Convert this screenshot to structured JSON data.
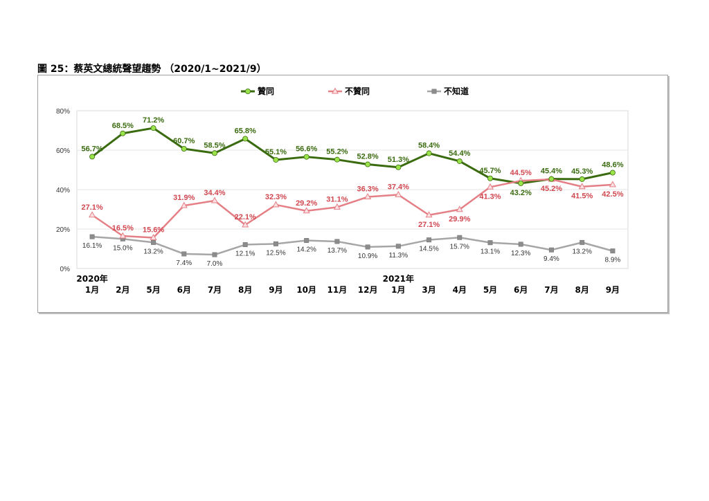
{
  "page": {
    "title": "圖 25：蔡英文總統聲望趨勢 （2020/1~2021/9）"
  },
  "chart_data": {
    "type": "line",
    "title": "",
    "xlabel": "",
    "ylabel": "",
    "ylim": [
      0,
      80
    ],
    "yticks": [
      "0%",
      "20%",
      "40%",
      "60%",
      "80%"
    ],
    "grid": true,
    "legend_position": "top-center",
    "categories": [
      {
        "year": "2020年",
        "month": "1月"
      },
      {
        "year": "",
        "month": "2月"
      },
      {
        "year": "",
        "month": "5月"
      },
      {
        "year": "",
        "month": "6月"
      },
      {
        "year": "",
        "month": "7月"
      },
      {
        "year": "",
        "month": "8月"
      },
      {
        "year": "",
        "month": "9月"
      },
      {
        "year": "",
        "month": "10月"
      },
      {
        "year": "",
        "month": "11月"
      },
      {
        "year": "",
        "month": "12月"
      },
      {
        "year": "2021年",
        "month": "1月"
      },
      {
        "year": "",
        "month": "3月"
      },
      {
        "year": "",
        "month": "4月"
      },
      {
        "year": "",
        "month": "5月"
      },
      {
        "year": "",
        "month": "6月"
      },
      {
        "year": "",
        "month": "7月"
      },
      {
        "year": "",
        "month": "8月"
      },
      {
        "year": "",
        "month": "9月"
      }
    ],
    "series": [
      {
        "name": "贊同",
        "color": "#3a6b0f",
        "marker": "circle",
        "marker_color": "#9be34a",
        "values": [
          56.7,
          68.5,
          71.2,
          60.7,
          58.5,
          65.8,
          55.1,
          56.6,
          55.2,
          52.8,
          51.3,
          58.4,
          54.4,
          45.7,
          43.2,
          45.4,
          45.3,
          48.6
        ],
        "labels": [
          "56.7%",
          "68.5%",
          "71.2%",
          "60.7%",
          "58.5%",
          "65.8%",
          "55.1%",
          "56.6%",
          "55.2%",
          "52.8%",
          "51.3%",
          "58.4%",
          "54.4%",
          "45.7%",
          "43.2%",
          "45.4%",
          "45.3%",
          "48.6%"
        ],
        "label_position": [
          "above",
          "above",
          "above",
          "above",
          "above",
          "above",
          "above",
          "above",
          "above",
          "above",
          "above",
          "above",
          "above",
          "above",
          "below",
          "above",
          "above",
          "above"
        ]
      },
      {
        "name": "不贊同",
        "color": "#e57f86",
        "marker": "triangle",
        "marker_color": "#fbe1e3",
        "values": [
          27.1,
          16.5,
          15.6,
          31.9,
          34.4,
          22.1,
          32.3,
          29.2,
          31.1,
          36.3,
          37.4,
          27.1,
          29.9,
          41.3,
          44.5,
          45.2,
          41.5,
          42.5
        ],
        "labels": [
          "27.1%",
          "16.5%",
          "15.6%",
          "31.9%",
          "34.4%",
          "22.1%",
          "32.3%",
          "29.2%",
          "31.1%",
          "36.3%",
          "37.4%",
          "27.1%",
          "29.9%",
          "41.3%",
          "44.5%",
          "45.2%",
          "41.5%",
          "42.5%"
        ],
        "label_position": [
          "above",
          "above",
          "above",
          "above",
          "above",
          "above",
          "above",
          "above",
          "above",
          "above",
          "above",
          "below",
          "below",
          "below",
          "above",
          "below",
          "below",
          "below"
        ]
      },
      {
        "name": "不知道",
        "color": "#a6a6a6",
        "marker": "square",
        "marker_color": "#8c8c8c",
        "values": [
          16.1,
          15.0,
          13.2,
          7.4,
          7.0,
          12.1,
          12.5,
          14.2,
          13.7,
          10.9,
          11.3,
          14.5,
          15.7,
          13.1,
          12.3,
          9.4,
          13.2,
          8.9
        ],
        "labels": [
          "16.1%",
          "15.0%",
          "13.2%",
          "7.4%",
          "7.0%",
          "12.1%",
          "12.5%",
          "14.2%",
          "13.7%",
          "10.9%",
          "11.3%",
          "14.5%",
          "15.7%",
          "13.1%",
          "12.3%",
          "9.4%",
          "13.2%",
          "8.9%"
        ],
        "label_position": [
          "below",
          "below",
          "below",
          "below",
          "below",
          "below",
          "below",
          "below",
          "below",
          "below",
          "below",
          "below",
          "below",
          "below",
          "below",
          "below",
          "below",
          "below"
        ]
      }
    ]
  }
}
